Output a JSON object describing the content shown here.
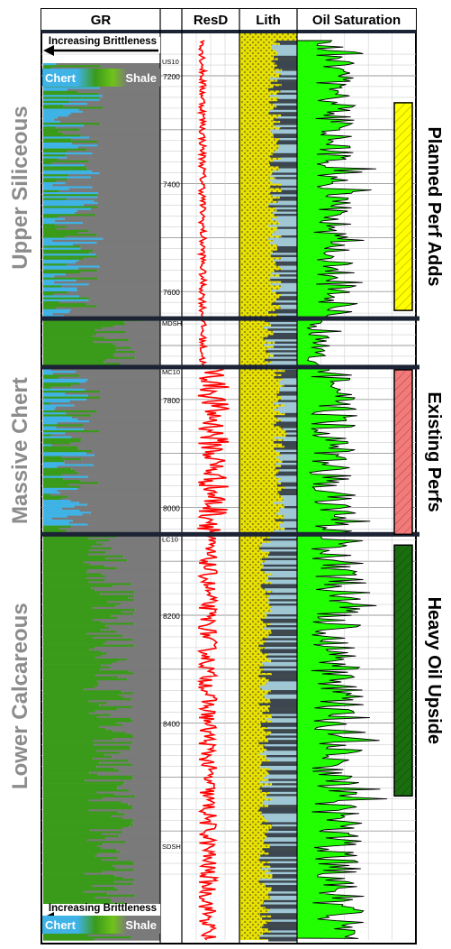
{
  "chart_data": {
    "type": "well-log",
    "tracks": [
      {
        "id": "gr",
        "title": "GR"
      },
      {
        "id": "depth",
        "title": ""
      },
      {
        "id": "resd",
        "title": "ResD"
      },
      {
        "id": "lith",
        "title": "Lith"
      },
      {
        "id": "oil",
        "title": "Oil Saturation"
      }
    ],
    "depth_ticks": [
      7200,
      7400,
      7600,
      7800,
      8000,
      8200,
      8400
    ],
    "depth_range": [
      7150,
      8700
    ],
    "formation_tops": [
      {
        "label": "US10",
        "depth": 7165
      },
      {
        "label": "MDSH",
        "depth": 7650
      },
      {
        "label": "MC10",
        "depth": 7740
      },
      {
        "label": "LC10",
        "depth": 8050
      },
      {
        "label": "SDSH",
        "depth": 8620
      }
    ],
    "zones": [
      {
        "name": "Upper Siliceous",
        "top": 7165,
        "base": 7650
      },
      {
        "name": "Massive Chert",
        "top": 7740,
        "base": 8050
      },
      {
        "name": "Lower Calcareous",
        "top": 8050,
        "base": 8700
      }
    ],
    "brittleness_label": "Increasing Brittleness",
    "gr_legend": {
      "left": "Chert",
      "right": "Shale"
    },
    "perf_intervals": [
      {
        "label": "Planned Perf Adds",
        "top": 7250,
        "base": 7635,
        "color": "#ffff00"
      },
      {
        "label": "Existing Perfs",
        "top": 7745,
        "base": 8050,
        "color": "#f47a7a"
      },
      {
        "label": "Heavy Oil Upside",
        "top": 8070,
        "base": 8535,
        "color": "#1b6e10"
      }
    ],
    "colors": {
      "chert": "#3fb2e6",
      "shale": "#7a7a7a",
      "gr_green": "#3a9a1a",
      "resd_curve": "#ff0000",
      "lith_fill": "#e8e000",
      "oil_fill": "#22ff00",
      "zone_label": "#8c8c8c",
      "divider": "#1b2334"
    }
  }
}
